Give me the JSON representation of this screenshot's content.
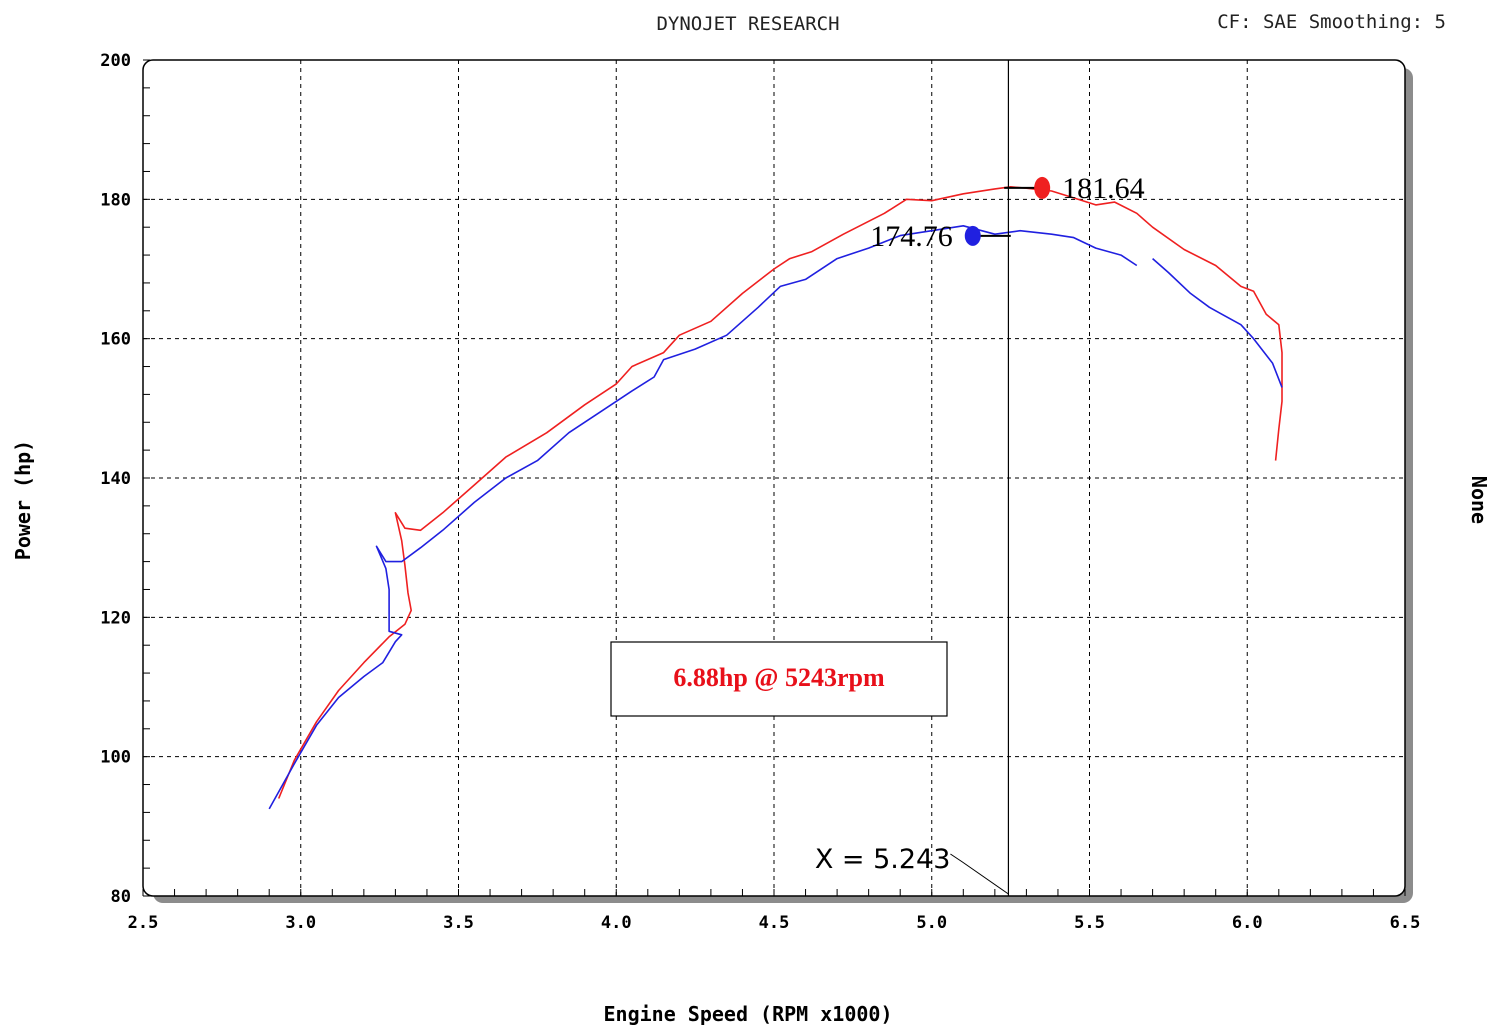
{
  "header": {
    "title": "DYNOJET RESEARCH",
    "settings": "CF: SAE  Smoothing: 5"
  },
  "chart_data": {
    "type": "line",
    "xlabel": "Engine Speed (RPM x1000)",
    "ylabel": "Power (hp)",
    "right_label": "None",
    "xlim": [
      2.5,
      6.5
    ],
    "ylim": [
      80,
      200
    ],
    "x_ticks": [
      "2.5",
      "3.0",
      "3.5",
      "4.0",
      "4.5",
      "5.0",
      "5.5",
      "6.0",
      "6.5"
    ],
    "y_ticks": [
      "80",
      "100",
      "120",
      "140",
      "160",
      "180",
      "200"
    ],
    "grid": true,
    "cursor": {
      "x": 5.243,
      "label": "X = 5.243"
    },
    "annotation": {
      "text": "6.88hp @ 5243rpm",
      "color": "#e8101a"
    },
    "series": [
      {
        "color": "#ef2020",
        "peak": {
          "x": 5.35,
          "y": 181.64,
          "label": "181.64"
        },
        "points": [
          [
            2.93,
            94.0
          ],
          [
            2.98,
            99.5
          ],
          [
            3.05,
            105.0
          ],
          [
            3.12,
            109.5
          ],
          [
            3.2,
            113.5
          ],
          [
            3.28,
            117.2
          ],
          [
            3.33,
            119.0
          ],
          [
            3.35,
            121.0
          ],
          [
            3.34,
            123.5
          ],
          [
            3.33,
            127.5
          ],
          [
            3.32,
            131.0
          ],
          [
            3.3,
            135.0
          ],
          [
            3.33,
            132.8
          ],
          [
            3.38,
            132.5
          ],
          [
            3.45,
            135.0
          ],
          [
            3.55,
            139.0
          ],
          [
            3.65,
            143.0
          ],
          [
            3.78,
            146.5
          ],
          [
            3.9,
            150.5
          ],
          [
            4.0,
            153.5
          ],
          [
            4.05,
            156.0
          ],
          [
            4.15,
            158.0
          ],
          [
            4.2,
            160.5
          ],
          [
            4.3,
            162.5
          ],
          [
            4.4,
            166.5
          ],
          [
            4.5,
            170.0
          ],
          [
            4.55,
            171.5
          ],
          [
            4.62,
            172.5
          ],
          [
            4.72,
            175.0
          ],
          [
            4.85,
            178.0
          ],
          [
            4.92,
            180.0
          ],
          [
            5.0,
            179.8
          ],
          [
            5.1,
            180.8
          ],
          [
            5.2,
            181.5
          ],
          [
            5.25,
            181.8
          ],
          [
            5.3,
            181.6
          ],
          [
            5.38,
            181.2
          ],
          [
            5.45,
            180.2
          ],
          [
            5.52,
            179.2
          ],
          [
            5.58,
            179.6
          ],
          [
            5.65,
            178.0
          ],
          [
            5.7,
            176.0
          ],
          [
            5.8,
            172.8
          ],
          [
            5.9,
            170.5
          ],
          [
            5.98,
            167.5
          ],
          [
            6.02,
            166.8
          ],
          [
            6.06,
            163.5
          ],
          [
            6.1,
            162.0
          ],
          [
            6.11,
            158.0
          ],
          [
            6.11,
            151.0
          ],
          [
            6.1,
            147.0
          ],
          [
            6.09,
            142.5
          ]
        ]
      },
      {
        "color": "#2020e0",
        "peak": {
          "x": 5.13,
          "y": 174.76,
          "label": "174.76"
        },
        "points": [
          [
            2.9,
            92.5
          ],
          [
            2.98,
            99.0
          ],
          [
            3.05,
            104.5
          ],
          [
            3.12,
            108.5
          ],
          [
            3.2,
            111.5
          ],
          [
            3.26,
            113.5
          ],
          [
            3.3,
            116.5
          ],
          [
            3.32,
            117.5
          ],
          [
            3.28,
            118.0
          ],
          [
            3.28,
            124.0
          ],
          [
            3.27,
            127.0
          ],
          [
            3.24,
            130.2
          ],
          [
            3.27,
            128.0
          ],
          [
            3.32,
            128.0
          ],
          [
            3.38,
            130.0
          ],
          [
            3.45,
            132.5
          ],
          [
            3.55,
            136.5
          ],
          [
            3.65,
            140.0
          ],
          [
            3.75,
            142.5
          ],
          [
            3.85,
            146.5
          ],
          [
            3.95,
            149.5
          ],
          [
            4.05,
            152.5
          ],
          [
            4.12,
            154.5
          ],
          [
            4.15,
            157.0
          ],
          [
            4.25,
            158.5
          ],
          [
            4.35,
            160.5
          ],
          [
            4.45,
            164.5
          ],
          [
            4.52,
            167.5
          ],
          [
            4.6,
            168.5
          ],
          [
            4.7,
            171.5
          ],
          [
            4.8,
            173.0
          ],
          [
            4.9,
            174.8
          ],
          [
            5.0,
            175.5
          ],
          [
            5.1,
            176.2
          ],
          [
            5.2,
            175.0
          ],
          [
            5.28,
            175.5
          ],
          [
            5.38,
            175.0
          ],
          [
            5.45,
            174.5
          ],
          [
            5.52,
            173.0
          ],
          [
            5.6,
            172.0
          ],
          [
            5.65,
            170.5
          ]
        ]
      },
      {
        "color": "#2020e0",
        "points": [
          [
            5.7,
            171.5
          ],
          [
            5.75,
            169.5
          ],
          [
            5.82,
            166.5
          ],
          [
            5.88,
            164.5
          ],
          [
            5.92,
            163.5
          ],
          [
            5.98,
            162.0
          ],
          [
            6.02,
            160.0
          ],
          [
            6.08,
            156.5
          ],
          [
            6.11,
            153.0
          ]
        ]
      }
    ]
  }
}
